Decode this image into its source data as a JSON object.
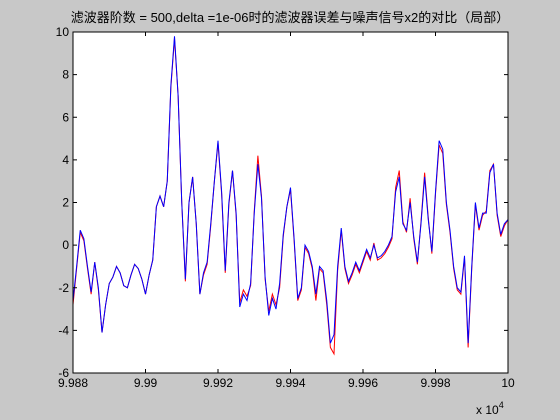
{
  "chart_data": {
    "type": "line",
    "title": "滤波器阶数 = 500,delta =1e-06时的滤波器误差与噪声信号x2的对比（局部）",
    "x_multiplier": {
      "base": "x 10",
      "exponent": "4"
    },
    "xlim": [
      9.988,
      10
    ],
    "xticks": [
      9.988,
      9.99,
      9.992,
      9.994,
      9.996,
      9.998,
      10
    ],
    "ylim": [
      -6,
      10
    ],
    "yticks": [
      -6,
      -4,
      -2,
      0,
      2,
      4,
      6,
      8,
      10
    ],
    "x": [
      9.988,
      9.9881,
      9.9882,
      9.9883,
      9.9884,
      9.9885,
      9.9886,
      9.9887,
      9.9888,
      9.9889,
      9.989,
      9.9891,
      9.9892,
      9.9893,
      9.9894,
      9.9895,
      9.9896,
      9.9897,
      9.9898,
      9.9899,
      9.99,
      9.9901,
      9.9902,
      9.9903,
      9.9904,
      9.9905,
      9.9906,
      9.9907,
      9.9908,
      9.9909,
      9.991,
      9.9911,
      9.9912,
      9.9913,
      9.9914,
      9.9915,
      9.9916,
      9.9917,
      9.9918,
      9.9919,
      9.992,
      9.9921,
      9.9922,
      9.9923,
      9.9924,
      9.9925,
      9.9926,
      9.9927,
      9.9928,
      9.9929,
      9.993,
      9.9931,
      9.9932,
      9.9933,
      9.9934,
      9.9935,
      9.9936,
      9.9937,
      9.9938,
      9.9939,
      9.994,
      9.9941,
      9.9942,
      9.9943,
      9.9944,
      9.9945,
      9.9946,
      9.9947,
      9.9948,
      9.9949,
      9.995,
      9.9951,
      9.9952,
      9.9953,
      9.9954,
      9.9955,
      9.9956,
      9.9957,
      9.9958,
      9.9959,
      9.996,
      9.9961,
      9.9962,
      9.9963,
      9.9964,
      9.9965,
      9.9966,
      9.9967,
      9.9968,
      9.9969,
      9.997,
      9.9971,
      9.9972,
      9.9973,
      9.9974,
      9.9975,
      9.9976,
      9.9977,
      9.9978,
      9.9979,
      9.998,
      9.9981,
      9.9982,
      9.9983,
      9.9984,
      9.9985,
      9.9986,
      9.9987,
      9.9988,
      9.9989,
      9.999,
      9.9991,
      9.9992,
      9.9993,
      9.9994,
      9.9995,
      9.9996,
      9.9997,
      9.9998,
      9.9999,
      10
    ],
    "series": [
      {
        "color": "#ff0000",
        "values": [
          -2.8,
          -1.1,
          0.6,
          0.2,
          -1.1,
          -2.3,
          -0.8,
          -2.1,
          -4.1,
          -2.8,
          -1.8,
          -1.5,
          -1.0,
          -1.3,
          -1.9,
          -2.0,
          -1.4,
          -0.9,
          -1.1,
          -1.6,
          -2.3,
          -1.4,
          -0.7,
          1.8,
          2.3,
          1.8,
          3.0,
          7.4,
          9.7,
          7.0,
          2.0,
          -1.7,
          2.0,
          3.2,
          1.0,
          -2.3,
          -1.4,
          -0.9,
          0.9,
          3.0,
          4.8,
          2.4,
          -1.3,
          1.9,
          3.5,
          1.4,
          -2.7,
          -2.1,
          -2.4,
          -1.9,
          1.6,
          4.2,
          2.3,
          -1.6,
          -3.1,
          -2.3,
          -2.8,
          -2.0,
          0.4,
          1.8,
          2.6,
          0.2,
          -2.6,
          -2.1,
          -0.1,
          -0.4,
          -1.1,
          -2.6,
          -1.1,
          -1.3,
          -2.8,
          -4.8,
          -5.1,
          -1.2,
          0.7,
          -1.1,
          -1.8,
          -1.4,
          -0.9,
          -1.3,
          -0.8,
          -0.3,
          -0.7,
          0.1,
          -0.7,
          -0.6,
          -0.4,
          -0.1,
          0.3,
          2.7,
          3.5,
          1.1,
          0.6,
          2.2,
          0.3,
          -0.9,
          1.1,
          3.4,
          1.3,
          -0.4,
          2.4,
          4.7,
          4.3,
          1.9,
          0.6,
          -1.1,
          -2.1,
          -2.3,
          -0.6,
          -4.8,
          -1.1,
          1.9,
          0.7,
          1.4,
          1.6,
          3.5,
          3.8,
          1.4,
          0.4,
          0.9,
          1.2
        ]
      },
      {
        "color": "#0000ff",
        "values": [
          -2.6,
          -1.0,
          0.7,
          0.3,
          -1.0,
          -2.2,
          -0.8,
          -2.0,
          -4.1,
          -2.8,
          -1.8,
          -1.5,
          -1.0,
          -1.3,
          -1.9,
          -2.0,
          -1.4,
          -0.9,
          -1.1,
          -1.6,
          -2.3,
          -1.4,
          -0.7,
          1.8,
          2.3,
          1.8,
          3.0,
          7.5,
          9.8,
          7.0,
          2.0,
          -1.6,
          2.0,
          3.2,
          1.0,
          -2.3,
          -1.3,
          -0.8,
          1.0,
          3.0,
          4.9,
          2.5,
          -1.2,
          2.0,
          3.5,
          1.5,
          -2.9,
          -2.3,
          -2.6,
          -1.8,
          1.5,
          3.8,
          2.2,
          -1.5,
          -3.3,
          -2.5,
          -3.0,
          -1.8,
          0.5,
          1.8,
          2.7,
          0.3,
          -2.5,
          -2.0,
          0.0,
          -0.3,
          -1.0,
          -2.3,
          -1.0,
          -1.2,
          -2.6,
          -4.6,
          -4.2,
          -1.0,
          0.8,
          -1.0,
          -1.7,
          -1.3,
          -0.8,
          -1.2,
          -0.7,
          -0.2,
          -0.6,
          0.0,
          -0.6,
          -0.5,
          -0.3,
          0.0,
          0.4,
          2.5,
          3.2,
          1.0,
          0.7,
          2.0,
          0.4,
          -0.8,
          1.0,
          3.2,
          1.2,
          -0.3,
          2.5,
          4.9,
          4.5,
          2.0,
          0.7,
          -1.0,
          -2.0,
          -2.2,
          -0.5,
          -4.6,
          -1.0,
          2.0,
          0.8,
          1.5,
          1.5,
          3.4,
          3.8,
          1.5,
          0.5,
          1.0,
          1.2
        ]
      }
    ]
  }
}
